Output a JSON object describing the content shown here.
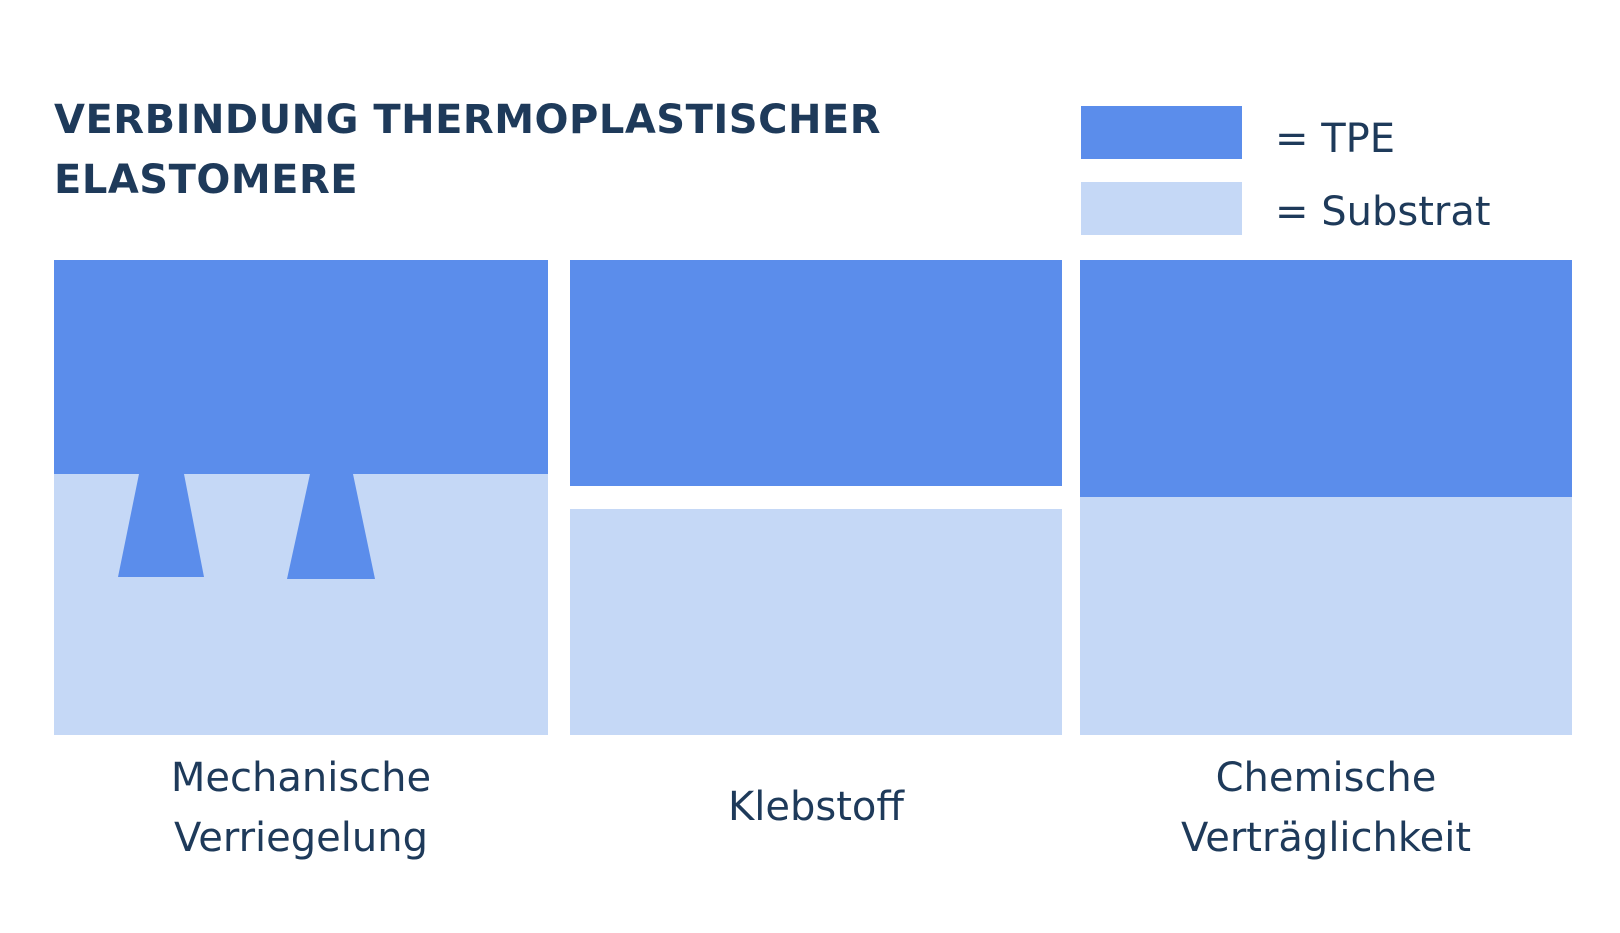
{
  "title": {
    "line1": "VERBINDUNG THERMOPLASTISCHER",
    "line2": "ELASTOMERE"
  },
  "legend": [
    {
      "label": "= TPE",
      "color": "#5b8deb"
    },
    {
      "label": "= Substrat",
      "color": "#c5d8f6"
    }
  ],
  "panels": [
    {
      "id": "mechanical",
      "caption_lines": [
        "Mechanische",
        "Verriegelung"
      ]
    },
    {
      "id": "adhesive",
      "caption_lines": [
        "Klebstoff"
      ]
    },
    {
      "id": "chemical",
      "caption_lines": [
        "Chemische",
        "Verträglichkeit"
      ]
    }
  ],
  "colors": {
    "tpe": "#5b8deb",
    "substrat": "#c5d8f6",
    "text": "#1e3a5a"
  }
}
